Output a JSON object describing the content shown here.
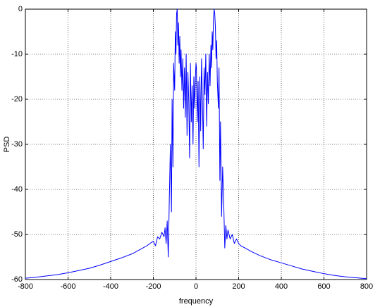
{
  "chart_data": {
    "type": "line",
    "xlabel": "frequency",
    "ylabel": "PSD",
    "xlim": [
      -800,
      800
    ],
    "ylim": [
      -60,
      0
    ],
    "xticks": [
      -800,
      -600,
      -400,
      -200,
      0,
      200,
      400,
      600,
      800
    ],
    "yticks": [
      -60,
      -50,
      -40,
      -30,
      -20,
      -10,
      0
    ],
    "grid": true,
    "series": [
      {
        "color": "#0000ff",
        "x": [
          -800,
          -750,
          -700,
          -650,
          -600,
          -550,
          -500,
          -450,
          -400,
          -350,
          -300,
          -260,
          -230,
          -210,
          -200,
          -190,
          -180,
          -170,
          -160,
          -150,
          -145,
          -140,
          -135,
          -130,
          -125,
          -120,
          -115,
          -112,
          -108,
          -105,
          -100,
          -97,
          -94,
          -91,
          -88,
          -85,
          -82,
          -79,
          -76,
          -73,
          -70,
          -66,
          -62,
          -58,
          -54,
          -50,
          -46,
          -42,
          -38,
          -34,
          -30,
          -26,
          -22,
          -18,
          -14,
          -10,
          -6,
          -2,
          0,
          2,
          6,
          10,
          14,
          18,
          22,
          26,
          30,
          34,
          38,
          42,
          46,
          50,
          54,
          58,
          62,
          66,
          70,
          73,
          76,
          79,
          82,
          85,
          88,
          91,
          94,
          97,
          100,
          105,
          108,
          112,
          115,
          120,
          125,
          130,
          135,
          140,
          145,
          150,
          160,
          170,
          180,
          190,
          200,
          210,
          230,
          260,
          300,
          350,
          400,
          450,
          500,
          550,
          600,
          650,
          700,
          750,
          800
        ],
        "values": [
          -59.7,
          -59.5,
          -59.2,
          -58.9,
          -58.5,
          -58,
          -57.5,
          -56.8,
          -56,
          -55.2,
          -54.3,
          -53.3,
          -52.5,
          -51.8,
          -51.5,
          -52.5,
          -50.5,
          -51,
          -49.5,
          -50.5,
          -48.5,
          -52,
          -47,
          -55,
          -42,
          -30,
          -45,
          -20,
          -35,
          -12,
          -18,
          -5,
          -10,
          -1,
          0,
          -8,
          -3,
          -12,
          -6,
          -15,
          -9,
          -18,
          -11,
          -22,
          -13,
          -24,
          -10,
          -28,
          -14,
          -20,
          -33,
          -12,
          -25,
          -17,
          -30,
          -15,
          -22,
          -14,
          -12,
          -13,
          -25,
          -16,
          -35,
          -15,
          -27,
          -11,
          -20,
          -31,
          -13,
          -19,
          -10,
          -26,
          -14,
          -21,
          -10,
          -17,
          -8,
          -13,
          -5,
          -9,
          -2,
          0,
          -1,
          -4,
          -11,
          -7,
          -16,
          -22,
          -13,
          -38,
          -25,
          -46,
          -35,
          -43,
          -53,
          -48,
          -51,
          -49,
          -51,
          -50,
          -52,
          -51,
          -52,
          -52.5,
          -53,
          -53.8,
          -54.7,
          -55.6,
          -56.3,
          -57,
          -57.7,
          -58.2,
          -58.7,
          -59.1,
          -59.4,
          -59.6,
          -59.8
        ]
      }
    ]
  }
}
